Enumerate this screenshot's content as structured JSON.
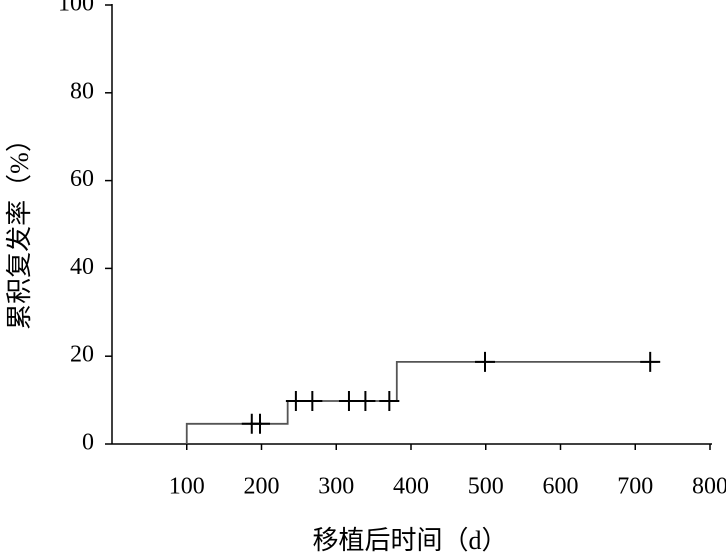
{
  "chart_data": {
    "type": "line",
    "x_label": "移植后时间（d）",
    "y_label": "累积复发率（%）",
    "series": [
      {
        "x": [
          100,
          100,
          235,
          235,
          381,
          381,
          730
        ],
        "values": [
          0,
          4.6,
          4.6,
          9.8,
          9.8,
          18.7,
          18.7
        ],
        "color": "#555555"
      }
    ],
    "censored": {
      "x": [
        187,
        198,
        246,
        268,
        317,
        339,
        371,
        499,
        720
      ],
      "values": [
        4.6,
        4.6,
        9.8,
        9.8,
        9.8,
        9.8,
        9.8,
        18.7,
        18.7
      ],
      "color": "#000000"
    },
    "xlim": [
      0,
      800
    ],
    "xticks": [
      100,
      200,
      300,
      400,
      500,
      600,
      700,
      800
    ],
    "ylim": [
      0,
      100
    ],
    "yticks": [
      0,
      20,
      40,
      60,
      80,
      100
    ]
  }
}
